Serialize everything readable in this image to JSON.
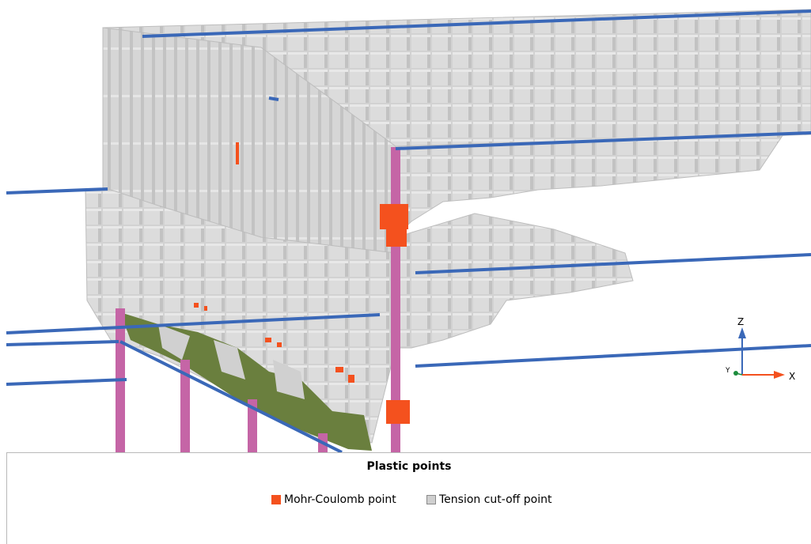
{
  "legend": {
    "title": "Plastic points",
    "items": [
      {
        "label": "Mohr-Coulomb point",
        "color": "#f4511e"
      },
      {
        "label": "Tension cut-off point",
        "color": "#cfcfcf"
      }
    ]
  },
  "axes_triad": {
    "z": "Z",
    "y": "Y",
    "x": "X"
  },
  "colors": {
    "soil_block": "#d0d0d0",
    "plate": "#3a68b8",
    "pile": "#c565a6",
    "green_zone": "#6a7f3e"
  }
}
